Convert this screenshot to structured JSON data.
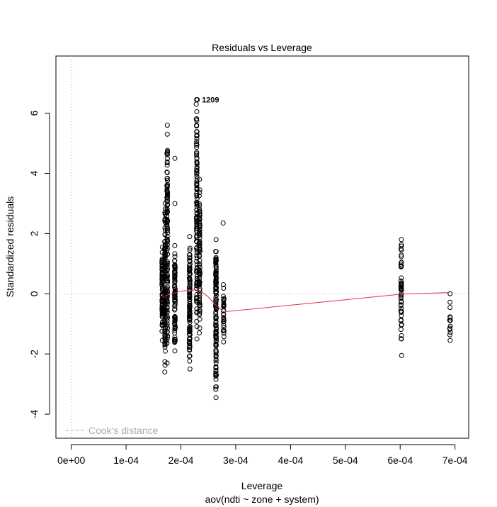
{
  "chart_data": {
    "type": "scatter",
    "title": "Residuals vs Leverage",
    "xlabel": "Leverage",
    "xlabel_sub": "aov(ndti ~ zone + system)",
    "ylabel": "Standardized residuals",
    "xlim": [
      -2.8e-05,
      0.000725
    ],
    "ylim": [
      -4.8,
      7.9
    ],
    "x_ticks": [
      0,
      0.0001,
      0.0002,
      0.0003,
      0.0004,
      0.0005,
      0.0006,
      0.0007
    ],
    "x_tick_labels": [
      "0e+00",
      "1e-04",
      "2e-04",
      "3e-04",
      "4e-04",
      "5e-04",
      "6e-04",
      "7e-04"
    ],
    "y_ticks": [
      -4,
      -2,
      0,
      2,
      4,
      6
    ],
    "y_tick_labels": [
      "-4",
      "-2",
      "0",
      "2",
      "4",
      "6"
    ],
    "reference_lines": {
      "x": 0,
      "y": 0,
      "style": "dotted",
      "color": "#aaaaaa"
    },
    "legend": {
      "label": "Cook's distance",
      "placement": "bottom-left",
      "color": "#aaaaaa",
      "style": "dashed"
    },
    "point_style": {
      "shape": "open-circle",
      "color": "#000000"
    },
    "annotations": [
      {
        "text": "1209",
        "x": 0.000233,
        "y": 6.45
      }
    ],
    "smooth_line": {
      "color": "#dd3344",
      "points": [
        [
          0.000166,
          -0.12
        ],
        [
          0.00018,
          -0.01
        ],
        [
          0.00019,
          0.04
        ],
        [
          0.000205,
          0.1
        ],
        [
          0.000218,
          0.12
        ],
        [
          0.000232,
          0.13
        ],
        [
          0.000248,
          -0.07
        ],
        [
          0.000264,
          -0.38
        ],
        [
          0.000278,
          -0.6
        ],
        [
          0.0004,
          -0.38
        ],
        [
          0.0005,
          -0.2
        ],
        [
          0.000603,
          -0.01
        ],
        [
          0.00069,
          0.04
        ]
      ]
    },
    "clusters": [
      {
        "x": 0.000166,
        "y_min": -1.55,
        "y_max": 1.55,
        "count": 90
      },
      {
        "x": 0.000171,
        "y_min": -2.6,
        "y_max": 3.0,
        "count": 110
      },
      {
        "x": 0.000175,
        "y_min": -2.3,
        "y_max": 5.6,
        "count": 130
      },
      {
        "x": 0.000189,
        "y_min": -1.9,
        "y_max": 1.6,
        "count": 90
      },
      {
        "x": 0.000216,
        "y_min": -2.5,
        "y_max": 1.9,
        "count": 110
      },
      {
        "x": 0.000229,
        "y_min": -1.5,
        "y_max": 6.45,
        "count": 120
      },
      {
        "x": 0.000234,
        "y_min": -1.3,
        "y_max": 3.8,
        "count": 90
      },
      {
        "x": 0.000264,
        "y_min": -3.45,
        "y_max": 1.8,
        "count": 130
      },
      {
        "x": 0.000278,
        "y_min": -1.6,
        "y_max": 0.3,
        "count": 30
      },
      {
        "x": 0.000602,
        "y_min": -2.05,
        "y_max": 1.8,
        "count": 50
      },
      {
        "x": 0.000691,
        "y_min": -1.55,
        "y_max": 0.0,
        "count": 14
      }
    ],
    "extra_points": [
      [
        0.000189,
        4.5
      ],
      [
        0.000189,
        3.0
      ],
      [
        0.000277,
        2.35
      ],
      [
        0.000229,
        5.15
      ],
      [
        0.000228,
        5.8
      ],
      [
        0.000228,
        6.3
      ],
      [
        0.00023,
        6.45
      ],
      [
        0.000229,
        6.45
      ]
    ]
  }
}
